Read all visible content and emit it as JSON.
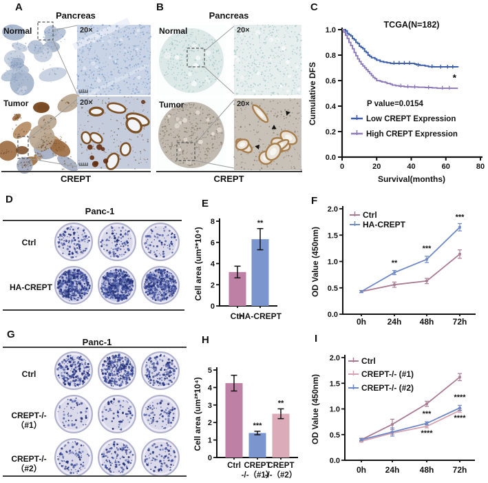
{
  "figure_bg": "#ffffff",
  "panels": {
    "A": {
      "letter": "A",
      "title": "Pancreas",
      "caption": "CREPT",
      "rows": [
        {
          "label": "Normal",
          "magnification": "20×"
        },
        {
          "label": "Tumor",
          "magnification": "20×"
        }
      ]
    },
    "B": {
      "letter": "B",
      "title": "Pancreas",
      "caption": "CREPT",
      "rows": [
        {
          "label": "Normal",
          "magnification": "20×"
        },
        {
          "label": "Tumor",
          "magnification": "20×"
        }
      ]
    },
    "C": {
      "letter": "C"
    },
    "D": {
      "letter": "D",
      "title": "Panc-1",
      "rows": [
        {
          "label": "Ctrl",
          "label2": "",
          "densities": [
            110,
            95,
            80
          ]
        },
        {
          "label": "HA-CREPT",
          "label2": "",
          "densities": [
            380,
            430,
            340
          ]
        }
      ]
    },
    "E": {
      "letter": "E"
    },
    "F": {
      "letter": "F"
    },
    "G": {
      "letter": "G",
      "title": "Panc-1",
      "rows": [
        {
          "label": "Ctrl",
          "label2": "",
          "densities": [
            240,
            290,
            170
          ]
        },
        {
          "label": "CREPT-/-",
          "label2": "（#1）",
          "densities": [
            60,
            70,
            78
          ]
        },
        {
          "label": "CREPT-/-",
          "label2": "（#2）",
          "densities": [
            95,
            125,
            88
          ]
        }
      ]
    },
    "H": {
      "letter": "H"
    },
    "I": {
      "letter": "I"
    }
  },
  "chart_data": [
    {
      "id": "C",
      "type": "line",
      "subtype": "kaplan-meier",
      "title": "TCGA(N=182)",
      "xlabel": "Survival(months)",
      "ylabel": "Cumulative DFS",
      "xlim": [
        0,
        80
      ],
      "ylim": [
        0.0,
        1.0
      ],
      "xticks": [
        0,
        20,
        40,
        60,
        80
      ],
      "yticks": [
        "0.0",
        "0.2",
        "0.4",
        "0.6",
        "0.8",
        "1.0"
      ],
      "pvalue": "P value=0.0154",
      "sig_star": "*",
      "sig_star_at": [
        65,
        0.62
      ],
      "legend_position": "inside-center",
      "grid": false,
      "series": [
        {
          "name": "Low CREPT Expression",
          "color": "#3d5fa9",
          "steps": [
            [
              2,
              0.99
            ],
            [
              3,
              0.97
            ],
            [
              4,
              0.96
            ],
            [
              5,
              0.95
            ],
            [
              6,
              0.93
            ],
            [
              7,
              0.92
            ],
            [
              8,
              0.9
            ],
            [
              9,
              0.89
            ],
            [
              10,
              0.87
            ],
            [
              11,
              0.86
            ],
            [
              12,
              0.85
            ],
            [
              13,
              0.83
            ],
            [
              14,
              0.82
            ],
            [
              15,
              0.8
            ],
            [
              16,
              0.79
            ],
            [
              17,
              0.78
            ],
            [
              19,
              0.77
            ],
            [
              20,
              0.76
            ],
            [
              22,
              0.75
            ],
            [
              24,
              0.745
            ],
            [
              26,
              0.74
            ],
            [
              28,
              0.735
            ],
            [
              42,
              0.73
            ],
            [
              43,
              0.725
            ],
            [
              45,
              0.72
            ],
            [
              48,
              0.715
            ],
            [
              50,
              0.71
            ],
            [
              53,
              0.708
            ],
            [
              67,
              0.705
            ]
          ],
          "censors": [
            [
              30,
              0.735
            ],
            [
              33,
              0.735
            ],
            [
              36,
              0.735
            ],
            [
              39,
              0.735
            ],
            [
              44,
              0.72
            ],
            [
              52,
              0.708
            ],
            [
              57,
              0.705
            ],
            [
              61,
              0.705
            ],
            [
              64,
              0.705
            ]
          ]
        },
        {
          "name": "High CREPT Expression",
          "color": "#8e7cba",
          "steps": [
            [
              1,
              0.98
            ],
            [
              2,
              0.955
            ],
            [
              3,
              0.93
            ],
            [
              4,
              0.9
            ],
            [
              5,
              0.875
            ],
            [
              6,
              0.85
            ],
            [
              7,
              0.82
            ],
            [
              8,
              0.795
            ],
            [
              9,
              0.77
            ],
            [
              10,
              0.75
            ],
            [
              11,
              0.73
            ],
            [
              12,
              0.715
            ],
            [
              13,
              0.7
            ],
            [
              14,
              0.685
            ],
            [
              15,
              0.67
            ],
            [
              16,
              0.655
            ],
            [
              17,
              0.64
            ],
            [
              18,
              0.625
            ],
            [
              19,
              0.615
            ],
            [
              20,
              0.6
            ],
            [
              22,
              0.595
            ],
            [
              23,
              0.59
            ],
            [
              25,
              0.585
            ],
            [
              26,
              0.578
            ],
            [
              28,
              0.572
            ],
            [
              29,
              0.565
            ],
            [
              31,
              0.56
            ],
            [
              33,
              0.556
            ],
            [
              36,
              0.552
            ],
            [
              40,
              0.55
            ],
            [
              44,
              0.548
            ],
            [
              48,
              0.546
            ],
            [
              52,
              0.543
            ],
            [
              55,
              0.54
            ],
            [
              67,
              0.54
            ]
          ],
          "censors": [
            [
              34,
              0.556
            ],
            [
              38,
              0.55
            ],
            [
              42,
              0.548
            ],
            [
              50,
              0.543
            ],
            [
              58,
              0.54
            ],
            [
              62,
              0.54
            ]
          ]
        }
      ]
    },
    {
      "id": "E",
      "type": "bar",
      "ylabel": "Cell area (um²*10⁴)",
      "ylim": [
        0,
        8
      ],
      "yticks": [
        0,
        2,
        4,
        6,
        8
      ],
      "categories": [
        "Ctrl",
        "HA-CREPT"
      ],
      "values": [
        3.2,
        6.3
      ],
      "errors": [
        0.55,
        1.0
      ],
      "sig": [
        "",
        "**"
      ],
      "bar_colors": [
        "#bf80a5",
        "#7b95ce"
      ]
    },
    {
      "id": "F",
      "type": "line",
      "ylabel": "OD Value (450nm)",
      "ylim": [
        0,
        2.0
      ],
      "yticks": [
        "0.0",
        "0.5",
        "1.0",
        "1.5",
        "2.0"
      ],
      "categories": [
        "0h",
        "24h",
        "48h",
        "72h"
      ],
      "legend_position": "inside-top-left",
      "grid": false,
      "series": [
        {
          "name": "Ctrl",
          "color": "#a97b93",
          "values": [
            0.43,
            0.56,
            0.63,
            1.14
          ],
          "errors": [
            0.02,
            0.05,
            0.05,
            0.08
          ]
        },
        {
          "name": "HA-CREPT",
          "color": "#6d88c4",
          "values": [
            0.43,
            0.79,
            1.04,
            1.65
          ],
          "errors": [
            0.02,
            0.04,
            0.06,
            0.07
          ]
        }
      ],
      "sig": [
        {
          "at": 1,
          "label": "**",
          "v": 0.93
        },
        {
          "at": 2,
          "label": "***",
          "v": 1.2
        },
        {
          "at": 3,
          "label": "***",
          "v": 1.8
        }
      ]
    },
    {
      "id": "H",
      "type": "bar",
      "ylabel": "Cell area (um²*10⁴)",
      "ylim": [
        0,
        5
      ],
      "yticks": [
        0,
        1,
        2,
        3,
        4,
        5
      ],
      "categories": [
        [
          "Ctrl",
          ""
        ],
        [
          "CREPT",
          "-/-（#1）"
        ],
        [
          "CREPT",
          "-/-（#2）"
        ]
      ],
      "values": [
        4.25,
        1.4,
        2.5
      ],
      "errors": [
        0.45,
        0.1,
        0.28
      ],
      "sig": [
        "",
        "***",
        "**"
      ],
      "bar_colors": [
        "#bf80a5",
        "#7b95ce",
        "#dcabb9"
      ]
    },
    {
      "id": "I",
      "type": "line",
      "ylabel": "OD Value (450nm)",
      "ylim": [
        0,
        2.0
      ],
      "yticks": [
        "0.0",
        "0.5",
        "1.0",
        "1.5",
        "2.0"
      ],
      "categories": [
        "0h",
        "24h",
        "48h",
        "72h"
      ],
      "legend_position": "inside-top-left",
      "grid": false,
      "series": [
        {
          "name": "Ctrl",
          "color": "#a97b93",
          "values": [
            0.4,
            0.7,
            1.1,
            1.62
          ],
          "errors": [
            0.03,
            0.1,
            0.05,
            0.07
          ]
        },
        {
          "name": "CREPT-/- (#1)",
          "color": "#d5a3b0",
          "values": [
            0.37,
            0.53,
            0.66,
            0.97
          ],
          "errors": [
            0.02,
            0.03,
            0.03,
            0.04
          ]
        },
        {
          "name": "CREPT-/- (#2)",
          "color": "#6d88c4",
          "values": [
            0.4,
            0.55,
            0.72,
            1.02
          ],
          "errors": [
            0.02,
            0.08,
            0.03,
            0.05
          ]
        }
      ],
      "sig": [
        {
          "at": 2,
          "label": "***",
          "v": 0.86
        },
        {
          "at": 2,
          "label": "****",
          "v": 0.48
        },
        {
          "at": 3,
          "label": "****",
          "v": 1.18
        },
        {
          "at": 3,
          "label": "****",
          "v": 0.78
        }
      ]
    }
  ],
  "palettes": {
    "colony": {
      "dish_fill": "#dbdaeb",
      "dish_rim": "#b0b1cd",
      "dish_highlight": "#efeef8",
      "colony_dots": [
        "#2c3a8c",
        "#4d5fa8",
        "#202d70"
      ],
      "dense_tint": "#8595cc"
    },
    "ihc_a_normal": {
      "bg": "#ffffff",
      "tissue": [
        "#c3cddd",
        "#b1bfd4",
        "#a3b3cb"
      ],
      "nuclei": "#8098bc"
    },
    "ihc_a_normal_20x": {
      "bg": "#c9d5e7",
      "nuclei": "#8aa3c7",
      "light": "#e9eef6"
    },
    "ihc_a_tumor": {
      "bg": "#ffffff",
      "tissue": [
        "#b28a60",
        "#9b6b40",
        "#b7a48e",
        "#a2abc0"
      ],
      "dark": "#76471f",
      "nuclei": "#6e4826"
    },
    "ihc_a_tumor_20x": {
      "bg": "#c5cddd",
      "gland_fill": "#f3f4f8",
      "gland_stroke": "#7d5126",
      "spots": "#642f10",
      "nuclei": "#7b6750"
    },
    "ihc_b_normal": {
      "bg": "#fcfdfd",
      "core": "#dde9e7",
      "nuclei": "#9fc2bf"
    },
    "ihc_b_normal_20x": {
      "bg": "#e7efee",
      "nuclei": "#a3c5c1"
    },
    "ihc_b_tumor": {
      "bg": "#fcfdfd",
      "core": "#c1bab0",
      "nuclei": "#867a6b",
      "light": "#e9e3da"
    },
    "ihc_b_tumor_20x": {
      "bg": "#c7c1b8",
      "gland_fill": "#eae4da",
      "gland_stroke": "#a87f4e",
      "lumen": "#f7f5f0",
      "nuclei": "#84796a",
      "arrow": "#111111"
    }
  }
}
